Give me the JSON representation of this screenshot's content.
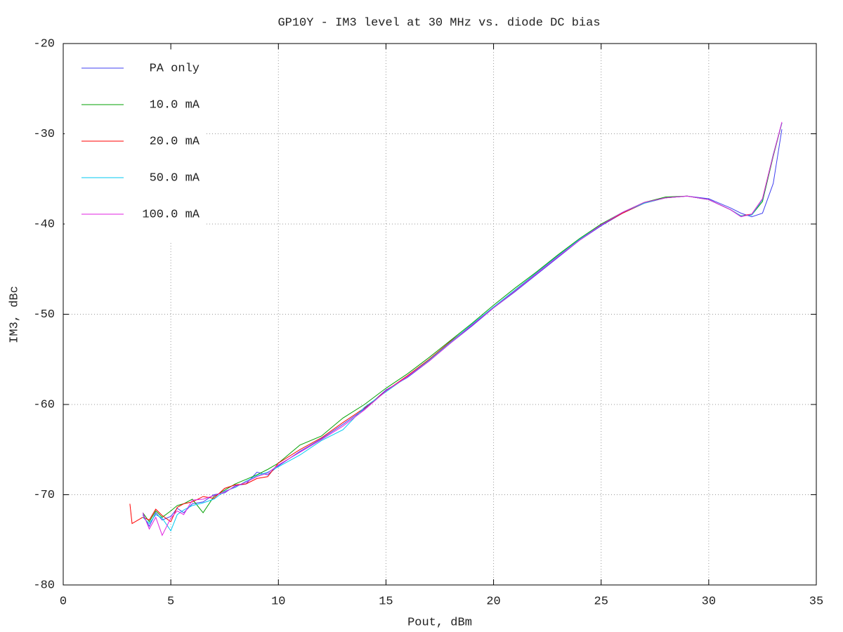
{
  "chart_data": {
    "type": "line",
    "title": "GP10Y - IM3 level at 30 MHz vs. diode DC bias",
    "x_label": "Pout, dBm",
    "y_label": "IM3, dBc",
    "x": [
      3.1,
      3.2,
      3.7,
      4.0,
      4.3,
      4.6,
      5.0,
      5.3,
      5.6,
      6.0,
      6.5,
      7.0,
      7.5,
      8.0,
      8.5,
      9.0,
      9.5,
      10,
      11,
      12,
      13,
      14,
      15,
      16,
      17,
      18,
      19,
      20,
      21,
      22,
      23,
      24,
      25,
      26,
      27,
      28,
      29,
      30,
      31,
      31.5,
      32,
      32.5,
      33,
      33.4
    ],
    "series": [
      {
        "name": "PA only",
        "color": "#4040f0",
        "values": [
          null,
          null,
          -72.2,
          -73.5,
          -72.0,
          -72.8,
          -72.4,
          -71.5,
          -72.0,
          -71.0,
          -70.8,
          -70.0,
          -69.8,
          -69.0,
          -68.8,
          -67.5,
          -67.8,
          -66.8,
          -65.2,
          -63.8,
          -62.2,
          -60.5,
          -58.4,
          -57.0,
          -55.2,
          -53.2,
          -51.3,
          -49.3,
          -47.5,
          -45.6,
          -43.7,
          -41.8,
          -40.2,
          -38.8,
          -37.7,
          -37.1,
          -36.9,
          -37.2,
          -38.2,
          -38.8,
          -39.2,
          -38.8,
          -35.5,
          -29.5
        ]
      },
      {
        "name": "10.0 mA",
        "color": "#00a000",
        "values": [
          null,
          null,
          -72.0,
          -73.0,
          -71.8,
          -72.5,
          -71.8,
          -71.2,
          -71.0,
          -70.5,
          -72.0,
          -70.2,
          -69.5,
          -68.8,
          -68.3,
          -67.8,
          -67.2,
          -66.5,
          -64.5,
          -63.5,
          -61.5,
          -60.0,
          -58.2,
          -56.6,
          -54.8,
          -52.9,
          -51.0,
          -49.0,
          -47.1,
          -45.3,
          -43.4,
          -41.6,
          -40.0,
          -38.7,
          -37.6,
          -37.0,
          -36.9,
          -37.3,
          -38.4,
          -39.1,
          -39.0,
          -37.5,
          -32.5,
          -28.8
        ]
      },
      {
        "name": "20.0 mA",
        "color": "#ff0000",
        "values": [
          -71.0,
          -73.2,
          -72.5,
          -72.8,
          -71.6,
          -72.3,
          -73.0,
          -71.4,
          -71.0,
          -70.8,
          -70.2,
          -70.4,
          -69.3,
          -68.9,
          -68.8,
          -68.2,
          -68.0,
          -66.5,
          -65.0,
          -63.7,
          -62.0,
          -60.4,
          -58.5,
          -56.8,
          -55.0,
          -53.0,
          -51.2,
          -49.2,
          -47.4,
          -45.4,
          -43.5,
          -41.7,
          -40.1,
          -38.8,
          -37.7,
          -37.1,
          -36.9,
          -37.3,
          -38.4,
          -39.1,
          -38.9,
          -37.2,
          -32.3,
          -28.8
        ]
      },
      {
        "name": "50.0 mA",
        "color": "#00c8f0",
        "values": [
          null,
          null,
          -72.5,
          -73.2,
          -72.2,
          -72.6,
          -74.0,
          -72.2,
          -71.7,
          -71.2,
          -70.9,
          -70.5,
          -69.6,
          -69.2,
          -68.5,
          -67.9,
          -67.5,
          -66.9,
          -65.6,
          -64.0,
          -62.8,
          -60.3,
          -58.6,
          -56.9,
          -55.1,
          -53.1,
          -51.1,
          -49.2,
          -47.3,
          -45.4,
          -43.5,
          -41.7,
          -40.1,
          -38.7,
          -37.7,
          -37.1,
          -36.9,
          -37.3,
          -38.4,
          -39.1,
          -39.0,
          -37.3,
          -32.3,
          -28.8
        ]
      },
      {
        "name": "100.0 mA",
        "color": "#e020e0",
        "values": [
          null,
          null,
          -72.0,
          -73.8,
          -72.5,
          -74.5,
          -72.6,
          -71.8,
          -72.2,
          -70.6,
          -70.5,
          -70.1,
          -69.7,
          -69.1,
          -68.6,
          -68.0,
          -67.6,
          -66.7,
          -65.3,
          -63.9,
          -62.4,
          -60.6,
          -58.5,
          -56.9,
          -55.2,
          -53.2,
          -51.2,
          -49.3,
          -47.4,
          -45.5,
          -43.6,
          -41.8,
          -40.1,
          -38.7,
          -37.6,
          -37.1,
          -36.9,
          -37.3,
          -38.4,
          -39.2,
          -38.9,
          -37.2,
          -32.4,
          -28.7
        ]
      }
    ],
    "xlim": [
      0,
      35
    ],
    "xticks": [
      0,
      5,
      10,
      15,
      20,
      25,
      30,
      35
    ],
    "ylim": [
      -80,
      -20
    ],
    "yticks": [
      -80,
      -70,
      -60,
      -50,
      -40,
      -30,
      -20
    ],
    "grid": true,
    "legend": "top-left"
  }
}
